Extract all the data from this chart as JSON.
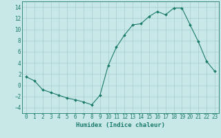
{
  "x": [
    0,
    1,
    2,
    3,
    4,
    5,
    6,
    7,
    8,
    9,
    10,
    11,
    12,
    13,
    14,
    15,
    16,
    17,
    18,
    19,
    20,
    21,
    22,
    23
  ],
  "y": [
    1.5,
    0.8,
    -0.8,
    -1.3,
    -1.8,
    -2.3,
    -2.6,
    -3.0,
    -3.5,
    -1.8,
    3.5,
    6.8,
    9.0,
    10.8,
    11.0,
    12.3,
    13.2,
    12.6,
    13.8,
    13.8,
    10.8,
    7.8,
    4.3,
    2.5
  ],
  "line_color": "#1a7a6a",
  "marker": "D",
  "marker_size": 2.0,
  "bg_color": "#c8e8e8",
  "grid_color": "#a8cccc",
  "axis_color": "#1a7a6a",
  "xlabel": "Humidex (Indice chaleur)",
  "ylim": [
    -5,
    15
  ],
  "yticks": [
    -4,
    -2,
    0,
    2,
    4,
    6,
    8,
    10,
    12,
    14
  ],
  "xticks": [
    0,
    1,
    2,
    3,
    4,
    5,
    6,
    7,
    8,
    9,
    10,
    11,
    12,
    13,
    14,
    15,
    16,
    17,
    18,
    19,
    20,
    21,
    22,
    23
  ],
  "font_color": "#1a7a6a",
  "tick_fontsize": 5.5,
  "xlabel_fontsize": 6.5,
  "linewidth": 0.8
}
